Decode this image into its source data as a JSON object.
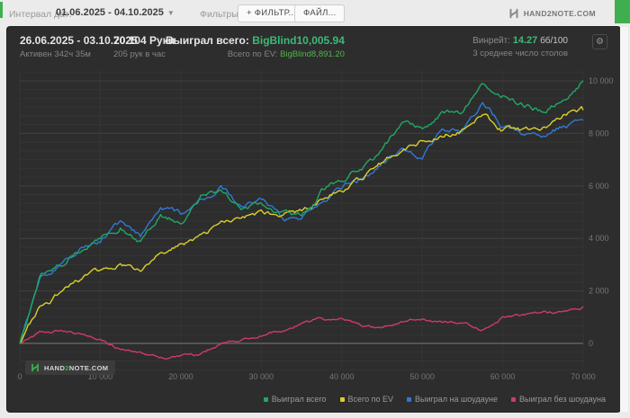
{
  "topbar": {
    "date_range_label": "Интервал дат:",
    "date_range_value": "01.06.2025 - 04.10.2025",
    "filters_label": "Фильтры:",
    "filter_button": "+ ФИЛЬТР...",
    "file_button": "ФАЙЛ...",
    "brand": "HAND2NOTE.COM"
  },
  "header": {
    "period": "26.06.2025 - 03.10.2025",
    "active_time": "Активен 342ч 35м",
    "hands": "70 104 Руки",
    "hands_per_hour": "205 рук в час",
    "won_total_label": "Выиграл всего:",
    "won_total_value": "BigBlind10,005.94",
    "ev_total_label": "Всего по EV:",
    "ev_total_value": "BigBlind8,891.20",
    "winrate_label": "Винрейт:",
    "winrate_value": "14.27",
    "winrate_units": "бб/100",
    "avg_tables": "3 среднее число столов"
  },
  "watermark": {
    "pre": "HAND",
    "digit": "2",
    "post": "NOTE.COM"
  },
  "colors": {
    "accent_green": "#3fae4e",
    "value_green": "#3bba77",
    "panel_bg": "#2d2d2d",
    "grid_minor": "#353535",
    "grid_major": "#404040",
    "zero_line": "#616161",
    "tick_text": "#757575"
  },
  "chart_data": {
    "type": "line",
    "xlabel": "hands",
    "ylabel": "BigBlinds",
    "xlim": [
      0,
      70000
    ],
    "ylim": [
      -1300,
      10600
    ],
    "grid": true,
    "legend_position": "bottom-right",
    "x_ticks": {
      "values": [
        0,
        10000,
        20000,
        30000,
        40000,
        50000,
        60000,
        70000
      ],
      "labels": [
        "0",
        "10 000",
        "20 000",
        "30 000",
        "40 000",
        "50 000",
        "60 000",
        "70 000"
      ]
    },
    "y_ticks": {
      "values": [
        0,
        2000,
        4000,
        6000,
        8000,
        10000
      ],
      "labels": [
        "0",
        "2 000",
        "4 000",
        "6 000",
        "8 000",
        "10 000"
      ]
    },
    "x": [
      0,
      2500,
      5000,
      7500,
      10000,
      12500,
      15000,
      17500,
      20000,
      22500,
      25000,
      27500,
      30000,
      32500,
      35000,
      37500,
      40000,
      42500,
      45000,
      47500,
      50000,
      52500,
      55000,
      57500,
      60000,
      62500,
      65000,
      67500,
      70000
    ],
    "series": [
      {
        "name": "Выиграл всего",
        "color": "#21a863",
        "values": [
          0,
          2600,
          3000,
          3500,
          4000,
          4450,
          3900,
          4950,
          4600,
          5600,
          5800,
          5200,
          5400,
          4950,
          4800,
          5800,
          6300,
          6700,
          7300,
          8400,
          8200,
          8800,
          8700,
          9800,
          9500,
          9100,
          8870,
          9250,
          10005.94
        ]
      },
      {
        "name": "Всего по EV",
        "color": "#d9cf2b",
        "values": [
          0,
          1400,
          1900,
          2400,
          2750,
          2950,
          2800,
          3500,
          3700,
          4100,
          4600,
          4700,
          4900,
          4900,
          5000,
          5500,
          5900,
          6250,
          6900,
          7400,
          7700,
          7900,
          8100,
          8800,
          8100,
          8100,
          8200,
          8700,
          8891.2
        ]
      },
      {
        "name": "Выиграл на шоудауне",
        "color": "#3079d6",
        "values": [
          0,
          2550,
          2900,
          3500,
          3900,
          4600,
          4100,
          5100,
          4900,
          5500,
          5900,
          5300,
          5500,
          4800,
          4600,
          5500,
          5900,
          6300,
          6900,
          7500,
          7100,
          8100,
          8200,
          9100,
          8300,
          7900,
          7800,
          8300,
          8500
        ]
      },
      {
        "name": "Выиграл без шоудауна",
        "color": "#cf3a6b",
        "values": [
          0,
          400,
          500,
          350,
          150,
          -250,
          -400,
          -550,
          -500,
          -450,
          0,
          100,
          340,
          480,
          780,
          950,
          950,
          700,
          600,
          850,
          950,
          855,
          750,
          550,
          1000,
          1100,
          1250,
          1150,
          1400
        ]
      }
    ]
  }
}
